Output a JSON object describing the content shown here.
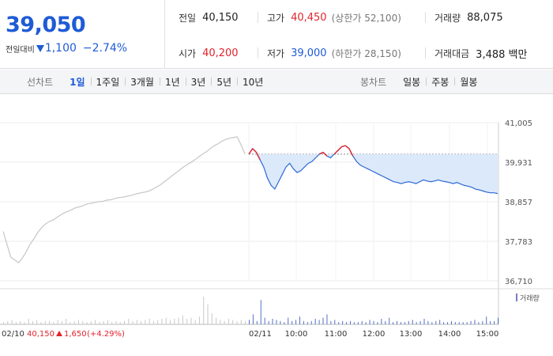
{
  "quote": {
    "price": "39,050",
    "change_label": "전일대비",
    "change_amount": "1,100",
    "change_percent": "−2.74%",
    "direction": "down",
    "colors": {
      "down": "#1e5bd6",
      "up": "#e0242d"
    }
  },
  "info": {
    "prev_close": {
      "label": "전일",
      "value": "40,150"
    },
    "high": {
      "label": "고가",
      "value": "40,450",
      "sub": "(상한가 52,100)"
    },
    "volume": {
      "label": "거래량",
      "value": "88,075"
    },
    "open": {
      "label": "시가",
      "value": "40,200"
    },
    "low": {
      "label": "저가",
      "value": "39,000",
      "sub": "(하한가 28,150)"
    },
    "trade_value": {
      "label": "거래대금",
      "value": "3,488 백만"
    }
  },
  "tabs": {
    "line_title": "선차트",
    "line_items": [
      "1일",
      "1주일",
      "3개월",
      "1년",
      "3년",
      "5년",
      "10년"
    ],
    "line_active": 0,
    "candle_title": "봉차트",
    "candle_items": [
      "일봉",
      "주봉",
      "월봉"
    ]
  },
  "chart_data": {
    "type": "line",
    "ylim": [
      36710,
      41005
    ],
    "yticks": [
      "41,005",
      "39,931",
      "38,857",
      "37,783",
      "36,710"
    ],
    "ytick_values": [
      41005,
      39931,
      38857,
      37783,
      36710
    ],
    "prev_close_line": 40150,
    "xticks": [
      "02/11",
      "10:00",
      "11:00",
      "12:00",
      "13:00",
      "14:00",
      "15:00"
    ],
    "volume_legend": "거래량",
    "footer": {
      "date": "02/10",
      "price": "40,150",
      "change": "1,650",
      "percent": "(+4.29%)"
    },
    "series": [
      {
        "values": [
          38050,
          37700,
          37350,
          37280,
          37200,
          37330,
          37500,
          37700,
          37850,
          38020,
          38150,
          38250,
          38320,
          38360,
          38430,
          38500,
          38560,
          38600,
          38650,
          38700,
          38720,
          38760,
          38800,
          38820,
          38840,
          38860,
          38870,
          38900,
          38910,
          38940,
          38970,
          38980,
          39000,
          39020,
          39050,
          39080,
          39100,
          39120,
          39150,
          39200,
          39260,
          39320,
          39400,
          39480,
          39560,
          39640,
          39720,
          39800,
          39870,
          39930,
          40000,
          40080,
          40150,
          40220,
          40300,
          40380,
          40430,
          40500,
          40550,
          40580,
          40600,
          40620,
          40400,
          40150
        ]
      },
      {
        "values": [
          40150,
          40300,
          40200,
          40000,
          39800,
          39500,
          39300,
          39200,
          39400,
          39600,
          39800,
          39900,
          39750,
          39650,
          39700,
          39800,
          39900,
          39950,
          40050,
          40150,
          40200,
          40100,
          40050,
          40150,
          40250,
          40350,
          40380,
          40300,
          40100,
          39950,
          39850,
          39800,
          39750,
          39700,
          39650,
          39600,
          39550,
          39500,
          39450,
          39400,
          39380,
          39350,
          39380,
          39400,
          39380,
          39350,
          39400,
          39450,
          39420,
          39400,
          39420,
          39450,
          39420,
          39400,
          39380,
          39350,
          39380,
          39340,
          39300,
          39280,
          39250,
          39200,
          39180,
          39150,
          39120,
          39100,
          39100,
          39080
        ]
      }
    ],
    "volume_today": [
      4,
      9,
      3,
      22,
      6,
      3,
      5,
      4,
      3,
      2,
      6,
      3,
      4,
      7,
      3,
      2,
      3,
      5,
      4,
      6,
      9,
      3,
      4,
      2,
      3,
      2,
      3,
      2,
      2,
      3,
      2,
      4,
      3,
      2,
      5,
      3,
      6,
      2,
      3,
      2,
      2,
      3,
      4,
      2,
      3,
      5,
      3,
      2,
      3,
      4,
      2,
      2,
      3,
      2,
      2,
      2,
      2,
      3,
      4,
      2,
      3,
      7,
      3,
      3,
      6
    ],
    "volume_prev": [
      2,
      3,
      4,
      2,
      3,
      2,
      5,
      3,
      4,
      2,
      3,
      3,
      2,
      4,
      3,
      5,
      2,
      3,
      4,
      3,
      2,
      3,
      4,
      2,
      3,
      4,
      2,
      3,
      2,
      3,
      5,
      3,
      4,
      3,
      4,
      5,
      3,
      4,
      5,
      6,
      4,
      5,
      6,
      8,
      5,
      6,
      4,
      7,
      25,
      18,
      10,
      6,
      4,
      3,
      5,
      4,
      3,
      4,
      3
    ]
  }
}
